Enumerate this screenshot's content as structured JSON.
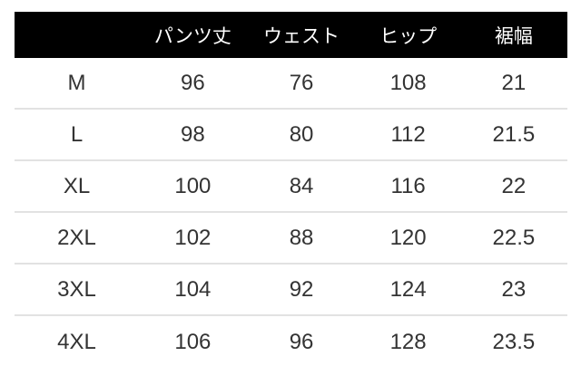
{
  "chart_data": {
    "type": "table",
    "columns": [
      "",
      "パンツ丈",
      "ウェスト",
      "ヒップ",
      "裾幅"
    ],
    "rows": [
      {
        "size": "M",
        "values": [
          96,
          76,
          108,
          21
        ]
      },
      {
        "size": "L",
        "values": [
          98,
          80,
          112,
          21.5
        ]
      },
      {
        "size": "XL",
        "values": [
          100,
          84,
          116,
          22
        ]
      },
      {
        "size": "2XL",
        "values": [
          102,
          88,
          120,
          22.5
        ]
      },
      {
        "size": "3XL",
        "values": [
          104,
          92,
          124,
          23
        ]
      },
      {
        "size": "4XL",
        "values": [
          106,
          96,
          128,
          23.5
        ]
      }
    ]
  },
  "colors": {
    "page_bg": "#ffffff",
    "header_bg": "#000000",
    "header_text": "#ffffff",
    "body_text": "#333333",
    "divider": "#e2e2e2"
  }
}
